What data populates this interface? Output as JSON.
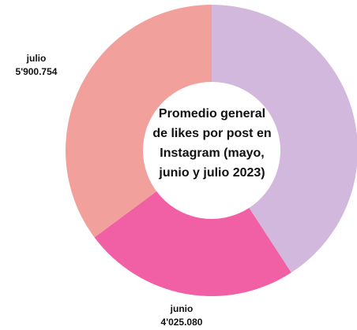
{
  "chart_data": {
    "type": "pie",
    "title_lines": [
      "Promedio general",
      "de likes por post en",
      "Instagram (mayo,",
      "junio y julio 2023)"
    ],
    "slices": [
      {
        "name": "",
        "value": 6850000,
        "value_label": "",
        "color": "#d3b8de"
      },
      {
        "name": "junio",
        "value": 4025080,
        "value_label": "4'025.080",
        "color": "#f15fa5"
      },
      {
        "name": "julio",
        "value": 5900754,
        "value_label": "5'900.754",
        "color": "#f2a09c"
      }
    ],
    "legend": "none",
    "donut": true
  }
}
